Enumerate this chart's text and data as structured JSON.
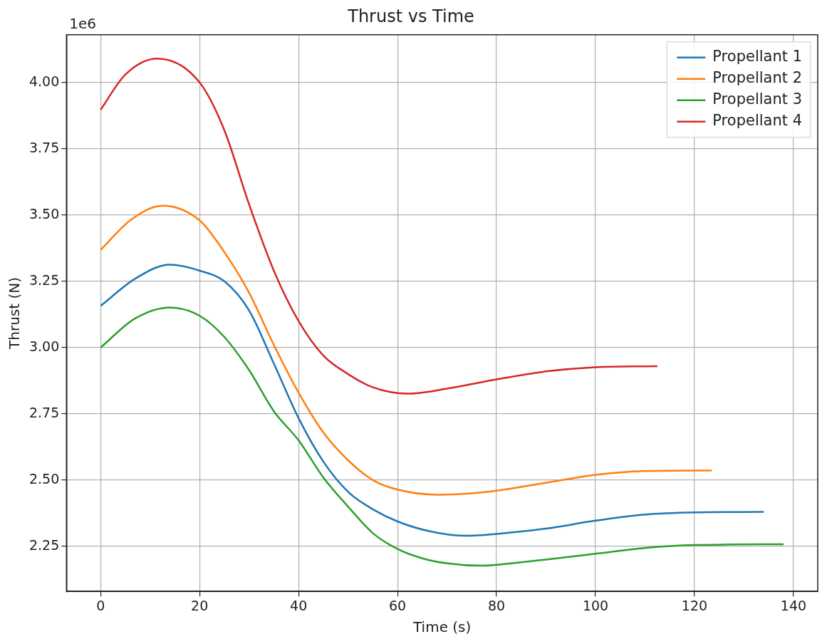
{
  "chart_data": {
    "type": "line",
    "title": "Thrust vs Time",
    "xlabel": "Time (s)",
    "ylabel": "Thrust (N)",
    "annotations": [
      "1e6"
    ],
    "xlim": [
      -6.9,
      144.9
    ],
    "xticks": [
      0,
      20,
      40,
      60,
      80,
      100,
      120,
      140
    ],
    "ylim": [
      2.08,
      4.18
    ],
    "yticks": [
      2.25,
      {
        "value": 2.5,
        "label": "2.50"
      },
      2.75,
      {
        "value": 3,
        "label": "3.00"
      },
      3.25,
      {
        "value": 3.5,
        "label": "3.50"
      },
      3.75,
      {
        "value": 4,
        "label": "4.00"
      }
    ],
    "grid": true,
    "legend": "top right",
    "marker": "none",
    "line_style": "solid",
    "series": [
      {
        "name": "Propellant 1",
        "color": "#1f77b4",
        "x": [
          0,
          7,
          14,
          20,
          25,
          30,
          35,
          40,
          45,
          50,
          55,
          60,
          67,
          74,
          80,
          90,
          100,
          110,
          120,
          134
        ],
        "values": [
          3.157,
          3.26,
          3.313,
          3.29,
          3.25,
          3.14,
          2.94,
          2.734,
          2.57,
          2.456,
          2.39,
          2.344,
          2.305,
          2.29,
          2.297,
          2.317,
          2.347,
          2.37,
          2.378,
          2.38
        ]
      },
      {
        "name": "Propellant 2",
        "color": "#ff7f0e",
        "x": [
          0,
          6,
          12.5,
          20,
          25,
          30,
          35,
          40,
          45,
          50,
          55,
          60,
          68,
          75,
          80,
          90,
          100,
          110,
          123.5
        ],
        "values": [
          3.368,
          3.48,
          3.535,
          3.48,
          3.36,
          3.207,
          3.01,
          2.83,
          2.68,
          2.575,
          2.5,
          2.464,
          2.445,
          2.45,
          2.46,
          2.49,
          2.52,
          2.534,
          2.536
        ]
      },
      {
        "name": "Propellant 3",
        "color": "#2ca02c",
        "x": [
          0,
          7,
          14,
          20,
          25,
          30,
          35,
          40,
          45,
          50,
          55,
          60,
          65,
          70,
          77,
          85,
          90,
          100,
          110,
          120,
          138
        ],
        "values": [
          3.0,
          3.11,
          3.151,
          3.12,
          3.04,
          2.915,
          2.76,
          2.65,
          2.51,
          2.4,
          2.3,
          2.24,
          2.205,
          2.186,
          2.177,
          2.19,
          2.2,
          2.222,
          2.244,
          2.255,
          2.258
        ]
      },
      {
        "name": "Propellant 4",
        "color": "#d62728",
        "x": [
          0,
          5,
          11.5,
          20,
          25,
          30,
          35,
          40,
          45,
          50,
          55,
          62,
          70,
          80,
          90,
          100,
          112.5
        ],
        "values": [
          3.897,
          4.03,
          4.09,
          4.0,
          3.82,
          3.54,
          3.29,
          3.1,
          2.97,
          2.9,
          2.85,
          2.826,
          2.845,
          2.88,
          2.91,
          2.926,
          2.93
        ]
      }
    ]
  }
}
